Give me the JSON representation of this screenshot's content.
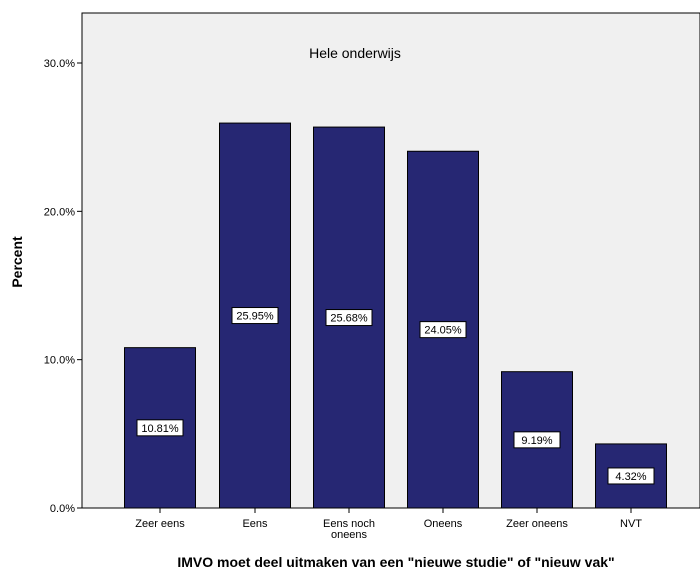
{
  "chart_data": {
    "type": "bar",
    "title": "Hele onderwijs",
    "xlabel": "IMVO moet deel uitmaken van een \"nieuwe studie\" of \"nieuw vak\"",
    "ylabel": "Percent",
    "categories": [
      "Zeer eens",
      "Eens",
      "Eens noch oneens",
      "Oneens",
      "Zeer oneens",
      "NVT"
    ],
    "category_lines": [
      [
        "Zeer eens"
      ],
      [
        "Eens"
      ],
      [
        "Eens noch",
        "oneens"
      ],
      [
        "Oneens"
      ],
      [
        "Zeer oneens"
      ],
      [
        "NVT"
      ]
    ],
    "values": [
      10.81,
      25.95,
      25.68,
      24.05,
      9.19,
      4.32
    ],
    "data_labels": [
      "10.81%",
      "25.95%",
      "25.68%",
      "24.05%",
      "9.19%",
      "4.32%"
    ],
    "ylim": [
      0,
      30
    ],
    "yticks": [
      0,
      10,
      20,
      30
    ],
    "ytick_labels": [
      "0.0%",
      "10.0%",
      "20.0%",
      "30.0%"
    ],
    "grid": false,
    "colors": {
      "bar": "#262773",
      "plot_bg": "#f0f0f0",
      "label_bg": "#ffffff"
    }
  }
}
